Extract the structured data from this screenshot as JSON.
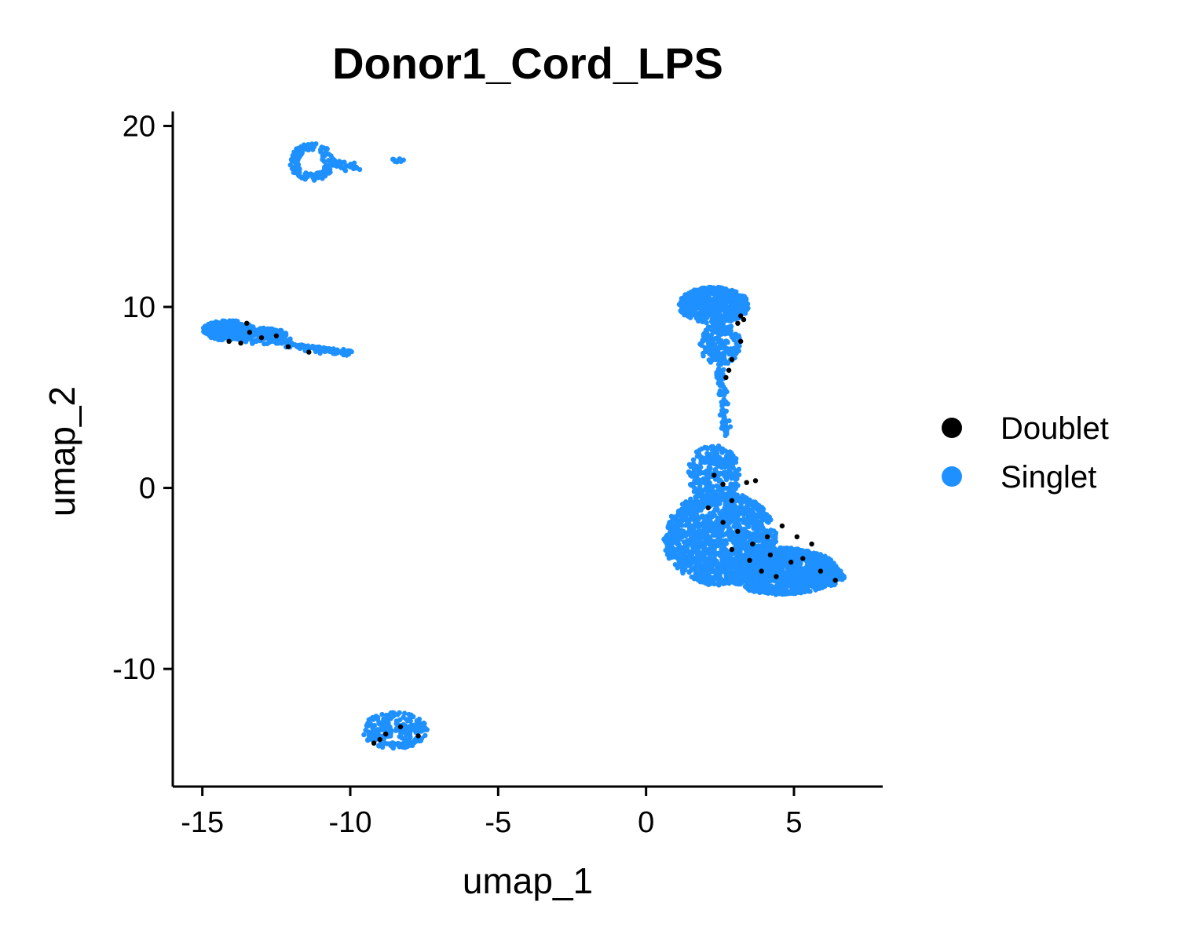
{
  "chart_data": {
    "type": "scatter",
    "title": "Donor1_Cord_LPS",
    "xlabel": "umap_1",
    "ylabel": "umap_2",
    "xlim": [
      -16,
      8
    ],
    "ylim": [
      -16.5,
      20.8
    ],
    "xticks": [
      -15,
      -10,
      -5,
      0,
      5
    ],
    "xtick_labels": [
      "-15",
      "-10",
      "-5",
      "0",
      "5"
    ],
    "yticks": [
      -10,
      0,
      10,
      20
    ],
    "ytick_labels": [
      "-10",
      "0",
      "10",
      "20"
    ],
    "grid": false,
    "legend_position": "right",
    "series": [
      {
        "name": "Doublet",
        "color": "#000000",
        "points": [
          [
            -14.1,
            8.1
          ],
          [
            -13.7,
            8.0
          ],
          [
            -13.4,
            8.6
          ],
          [
            -13.0,
            8.3
          ],
          [
            -12.5,
            8.4
          ],
          [
            -12.1,
            7.8
          ],
          [
            -11.4,
            7.5
          ],
          [
            -13.5,
            9.1
          ],
          [
            -9.2,
            -14.1
          ],
          [
            -8.8,
            -13.6
          ],
          [
            -8.3,
            -13.2
          ],
          [
            -7.7,
            -13.7
          ],
          [
            -9.0,
            -13.9
          ],
          [
            3.2,
            9.5
          ],
          [
            3.1,
            9.1
          ],
          [
            3.3,
            9.3
          ],
          [
            3.2,
            8.1
          ],
          [
            2.9,
            7.1
          ],
          [
            2.7,
            6.1
          ],
          [
            2.8,
            6.5
          ],
          [
            2.3,
            0.7
          ],
          [
            2.6,
            0.2
          ],
          [
            2.9,
            -0.7
          ],
          [
            3.4,
            0.3
          ],
          [
            3.7,
            0.4
          ],
          [
            2.1,
            -1.1
          ],
          [
            2.6,
            -1.9
          ],
          [
            3.1,
            -2.4
          ],
          [
            3.6,
            -3.1
          ],
          [
            4.1,
            -2.7
          ],
          [
            4.6,
            -2.1
          ],
          [
            5.1,
            -2.7
          ],
          [
            5.6,
            -3.1
          ],
          [
            3.9,
            -4.6
          ],
          [
            4.4,
            -4.9
          ],
          [
            5.9,
            -4.6
          ],
          [
            6.4,
            -5.1
          ],
          [
            4.9,
            -4.1
          ],
          [
            4.2,
            -3.7
          ],
          [
            5.3,
            -3.9
          ],
          [
            2.9,
            -3.4
          ],
          [
            3.5,
            -4.0
          ]
        ]
      },
      {
        "name": "Singlet",
        "color": "#1E90FF",
        "clusters": [
          {
            "shape": "loop",
            "cx": -11.3,
            "cy": 18.0,
            "rx": 0.7,
            "ry": 1.0,
            "n": 140
          },
          {
            "shape": "segment",
            "x0": -11.0,
            "y0": 18.2,
            "x1": -9.8,
            "y1": 17.7,
            "spread": 0.25,
            "n": 40
          },
          {
            "shape": "blob",
            "cx": -8.4,
            "cy": 18.1,
            "rx": 0.2,
            "ry": 0.1,
            "n": 12
          },
          {
            "shape": "blob",
            "cx": -14.1,
            "cy": 8.7,
            "rx": 0.9,
            "ry": 0.55,
            "n": 220
          },
          {
            "shape": "blob",
            "cx": -13.0,
            "cy": 8.4,
            "rx": 0.9,
            "ry": 0.45,
            "n": 140
          },
          {
            "shape": "segment",
            "x0": -12.6,
            "y0": 8.1,
            "x1": -10.0,
            "y1": 7.4,
            "spread": 0.2,
            "n": 110
          },
          {
            "shape": "blob",
            "cx": -8.5,
            "cy": -13.4,
            "rx": 1.1,
            "ry": 1.0,
            "n": 230
          },
          {
            "shape": "blob",
            "cx": 2.3,
            "cy": 10.1,
            "rx": 1.2,
            "ry": 1.0,
            "n": 520
          },
          {
            "shape": "blob",
            "cx": 2.5,
            "cy": 8.0,
            "rx": 0.7,
            "ry": 1.2,
            "n": 200
          },
          {
            "shape": "segment",
            "x0": 2.5,
            "y0": 6.5,
            "x1": 2.7,
            "y1": 3.0,
            "spread": 0.25,
            "n": 90
          },
          {
            "shape": "blob",
            "cx": 2.3,
            "cy": 0.8,
            "rx": 0.9,
            "ry": 1.6,
            "n": 300
          },
          {
            "shape": "blob",
            "cx": 2.5,
            "cy": -2.8,
            "rx": 1.9,
            "ry": 2.6,
            "n": 1400
          },
          {
            "shape": "blob",
            "cx": 4.6,
            "cy": -4.6,
            "rx": 1.9,
            "ry": 1.3,
            "n": 1100
          },
          {
            "shape": "blob",
            "cx": 5.8,
            "cy": -4.9,
            "rx": 0.9,
            "ry": 0.6,
            "n": 250
          }
        ]
      }
    ]
  }
}
